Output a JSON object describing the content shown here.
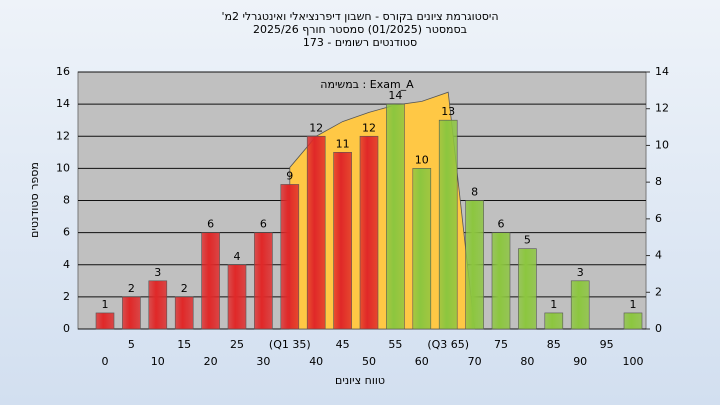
{
  "chart_data": {
    "type": "bar",
    "title": "היסטוגרמת ציונים בקורס - חשבון דיפרנציאלי ואינטגרלי 2מ'",
    "subtitle": "בסמסטר (01/2025) סמסטר חורף 2025/26",
    "subtitle2": "סטודנטים רשומים - 173",
    "annotation": "במשימה : Exam_A",
    "xlabel": "טווח ציונים",
    "ylabel": "מספר סטודנטים",
    "categories": [
      "0",
      "5",
      "10",
      "15",
      "20",
      "25",
      "30",
      "(Q1 35)",
      "40",
      "45",
      "50",
      "55",
      "60",
      "(Q3 65)",
      "70",
      "75",
      "80",
      "85",
      "90",
      "95",
      "100"
    ],
    "series": [
      {
        "values": [
          1,
          2,
          3,
          2,
          6,
          4,
          6,
          9,
          12,
          11,
          12,
          14,
          10,
          13,
          8,
          6,
          5,
          1,
          3,
          0,
          1
        ],
        "colors": [
          "#e02828",
          "#e02828",
          "#e02828",
          "#e02828",
          "#e02828",
          "#e02828",
          "#e02828",
          "#e02828",
          "#e02828",
          "#e02828",
          "#e02828",
          "#8cc63f",
          "#8cc63f",
          "#8cc63f",
          "#8cc63f",
          "#8cc63f",
          "#8cc63f",
          "#8cc63f",
          "#8cc63f",
          "#8cc63f",
          "#8cc63f"
        ]
      },
      {
        "type": "area",
        "axis": "y2",
        "color": "#ffc845",
        "values": [
          null,
          null,
          null,
          null,
          null,
          null,
          null,
          8.8,
          10.5,
          11.3,
          11.8,
          12.2,
          12.4,
          12.9,
          0,
          null,
          null,
          null,
          null,
          null,
          null
        ]
      }
    ],
    "ylim": [
      0,
      16
    ],
    "yticks": [
      0,
      2,
      4,
      6,
      8,
      10,
      12,
      14,
      16
    ],
    "y2lim": [
      0,
      14
    ],
    "y2ticks": [
      0,
      2,
      4,
      6,
      8,
      10,
      12,
      14
    ],
    "grid": true
  }
}
